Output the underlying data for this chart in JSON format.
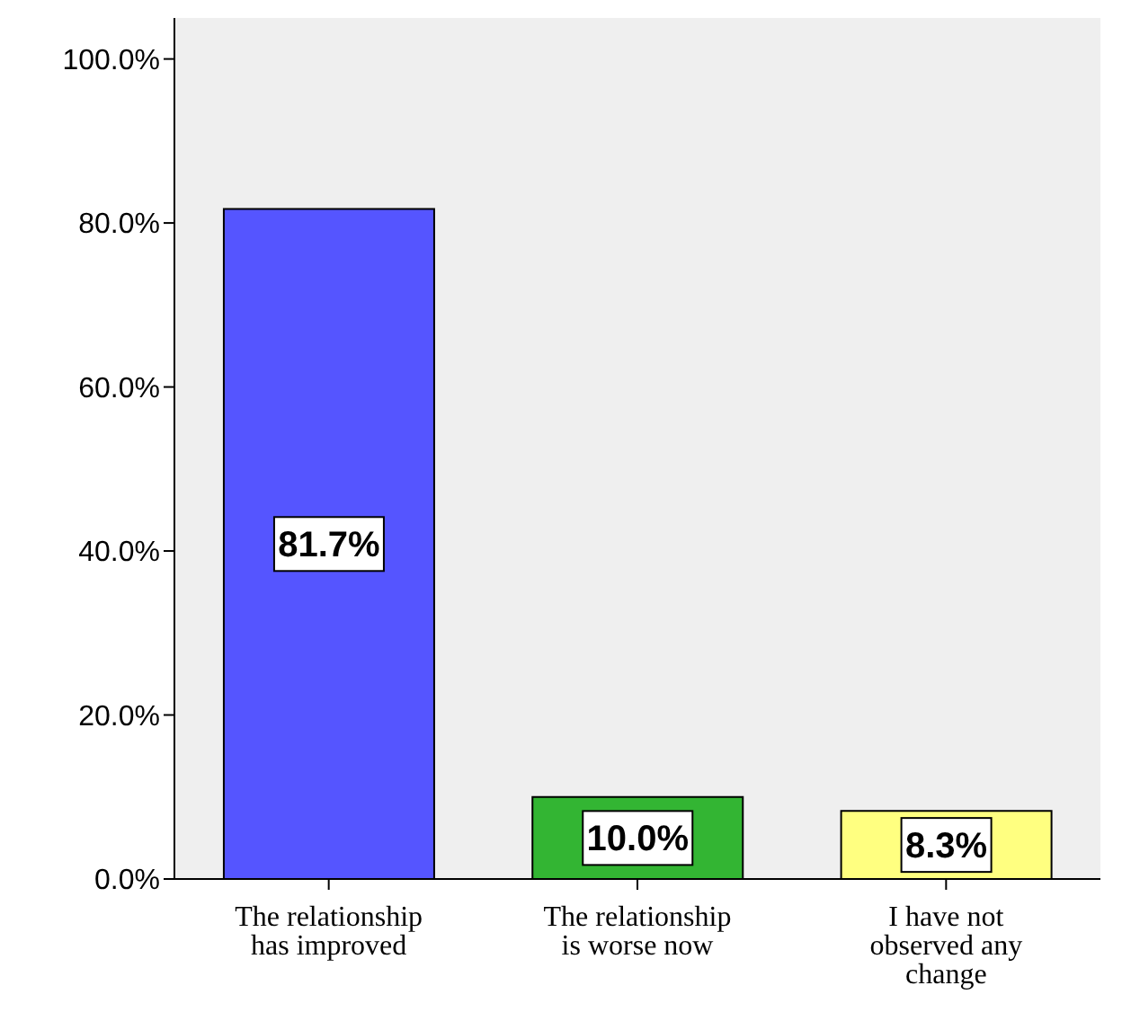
{
  "chart_data": {
    "type": "bar",
    "categories": [
      "The relationship has improved",
      "The relationship is worse now",
      "I have not observed any change"
    ],
    "values": [
      81.7,
      10.0,
      8.3
    ],
    "colors": [
      "#5555ff",
      "#33b533",
      "#ffff80"
    ],
    "value_labels": [
      "81.7%",
      "10.0%",
      "8.3%"
    ],
    "ylim": [
      0,
      105
    ],
    "yticks": [
      {
        "value": 0,
        "label": "0.0%"
      },
      {
        "value": 20,
        "label": "20.0%"
      },
      {
        "value": 40,
        "label": "40.0%"
      },
      {
        "value": 60,
        "label": "60.0%"
      },
      {
        "value": 80,
        "label": "80.0%"
      },
      {
        "value": 100,
        "label": "100.0%"
      }
    ],
    "grid": false
  }
}
